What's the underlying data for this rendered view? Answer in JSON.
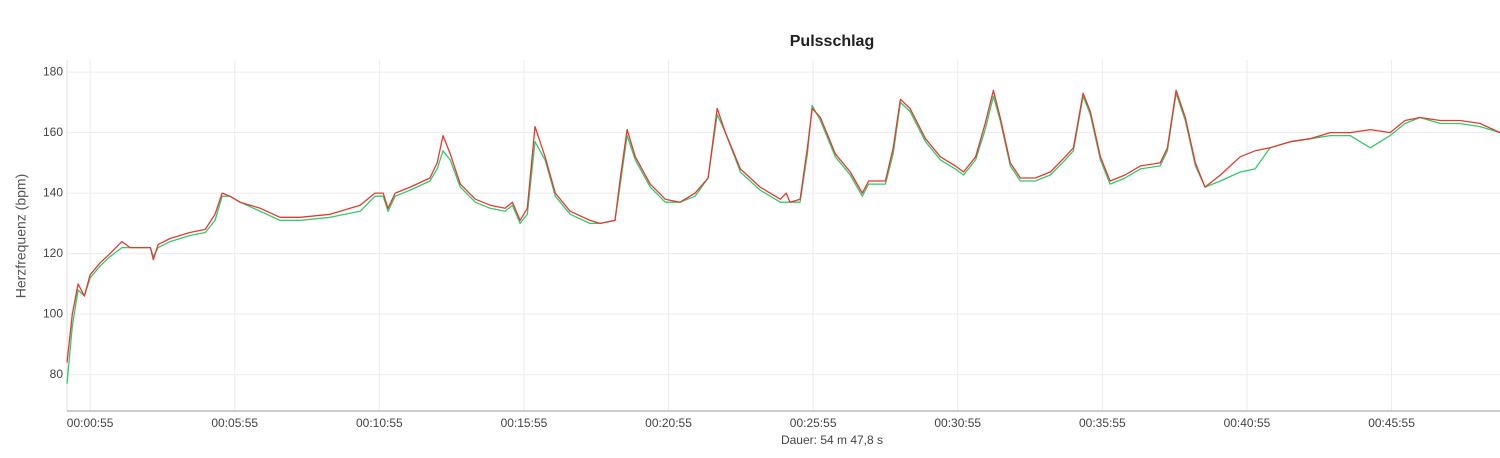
{
  "chart_data": {
    "type": "line",
    "title": "Pulsschlag",
    "y_label": "Herzfrequenz (bpm)",
    "x_label": "Dauer: 54 m 47,8 s",
    "x": [
      7,
      18,
      30,
      43,
      55,
      76,
      96,
      121,
      138,
      180,
      186,
      196,
      221,
      262,
      294,
      314,
      329,
      345,
      366,
      408,
      449,
      491,
      553,
      615,
      646,
      663,
      673,
      688,
      719,
      760,
      775,
      787,
      802,
      823,
      854,
      885,
      916,
      931,
      947,
      962,
      978,
      999,
      1020,
      1051,
      1092,
      1113,
      1144,
      1155,
      1169,
      1186,
      1217,
      1248,
      1279,
      1310,
      1337,
      1356,
      1373,
      1404,
      1445,
      1487,
      1499,
      1507,
      1528,
      1543,
      1553,
      1570,
      1601,
      1632,
      1657,
      1670,
      1705,
      1721,
      1736,
      1756,
      1788,
      1819,
      1850,
      1867,
      1892,
      1912,
      1929,
      1943,
      1964,
      1985,
      2016,
      2047,
      2078,
      2095,
      2115,
      2130,
      2151,
      2171,
      2202,
      2234,
      2275,
      2290,
      2308,
      2327,
      2348,
      2368,
      2400,
      2441,
      2472,
      2503,
      2545,
      2586,
      2628,
      2669,
      2711,
      2752,
      2783,
      2814,
      2856,
      2897,
      2939,
      2980
    ],
    "series": [
      {
        "color": "#e8392c",
        "values": [
          84,
          100,
          110,
          106,
          113,
          117,
          120,
          124,
          122,
          122,
          118,
          123,
          125,
          127,
          128,
          133,
          140,
          139,
          137,
          135,
          132,
          132,
          133,
          136,
          140,
          140,
          135,
          140,
          142,
          145,
          150,
          159,
          153,
          143,
          138,
          136,
          135,
          137,
          131,
          135,
          162,
          152,
          140,
          134,
          131,
          130,
          131,
          145,
          161,
          152,
          143,
          138,
          137,
          140,
          145,
          168,
          160,
          148,
          142,
          138,
          140,
          137,
          138,
          155,
          168,
          165,
          153,
          147,
          140,
          144,
          144,
          155,
          171,
          168,
          158,
          152,
          149,
          147,
          152,
          163,
          174,
          165,
          150,
          145,
          145,
          147,
          152,
          155,
          173,
          167,
          152,
          144,
          146,
          149,
          150,
          155,
          174,
          165,
          150,
          142,
          146,
          152,
          154,
          155,
          157,
          158,
          160,
          160,
          161,
          160,
          164,
          165,
          164,
          164,
          163,
          160
        ]
      },
      {
        "color": "#2ecc71",
        "values": [
          77,
          96,
          108,
          106,
          112,
          116,
          119,
          122,
          122,
          122,
          119,
          122,
          124,
          126,
          127,
          131,
          139,
          139,
          137,
          134,
          131,
          131,
          132,
          134,
          139,
          139,
          134,
          139,
          141,
          144,
          148,
          154,
          151,
          142,
          137,
          135,
          134,
          136,
          130,
          133,
          157,
          151,
          139,
          133,
          130,
          130,
          131,
          143,
          159,
          151,
          142,
          137,
          137,
          139,
          145,
          166,
          160,
          147,
          141,
          137,
          137,
          137,
          137,
          153,
          169,
          164,
          152,
          146,
          139,
          143,
          143,
          153,
          170,
          167,
          157,
          151,
          148,
          146,
          151,
          161,
          172,
          164,
          149,
          144,
          144,
          146,
          151,
          154,
          172,
          166,
          151,
          143,
          145,
          148,
          149,
          154,
          173,
          164,
          149,
          142,
          144,
          147,
          148,
          155,
          157,
          158,
          159,
          159,
          155,
          159,
          163,
          165,
          163,
          163,
          162,
          160
        ]
      }
    ],
    "xlim": [
      7,
      2980
    ],
    "xticks": [
      {
        "value": 55,
        "label": "00:00:55"
      },
      {
        "value": 355,
        "label": "00:05:55"
      },
      {
        "value": 655,
        "label": "00:10:55"
      },
      {
        "value": 955,
        "label": "00:15:55"
      },
      {
        "value": 1255,
        "label": "00:20:55"
      },
      {
        "value": 1555,
        "label": "00:25:55"
      },
      {
        "value": 1855,
        "label": "00:30:55"
      },
      {
        "value": 2155,
        "label": "00:35:55"
      },
      {
        "value": 2455,
        "label": "00:40:55"
      },
      {
        "value": 2755,
        "label": "00:45:55"
      }
    ],
    "ylim": [
      68,
      184
    ],
    "yticks": [
      80,
      100,
      120,
      140,
      160,
      180
    ],
    "grid": true
  }
}
